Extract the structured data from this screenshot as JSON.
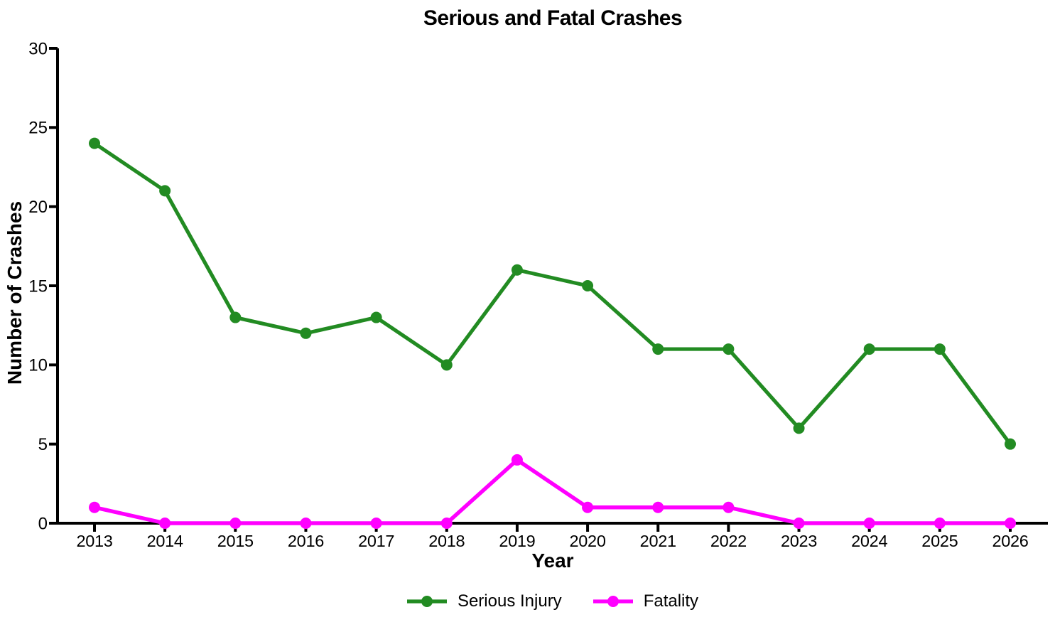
{
  "chart_data": {
    "type": "line",
    "title": "Serious and Fatal Crashes",
    "xlabel": "Year",
    "ylabel": "Number of Crashes",
    "categories": [
      "2013",
      "2014",
      "2015",
      "2016",
      "2017",
      "2018",
      "2019",
      "2020",
      "2021",
      "2022",
      "2023",
      "2024",
      "2025",
      "2026"
    ],
    "series": [
      {
        "name": "Serious Injury",
        "color": "#228B22",
        "values": [
          24,
          21,
          13,
          12,
          13,
          10,
          16,
          15,
          11,
          11,
          6,
          11,
          11,
          5
        ]
      },
      {
        "name": "Fatality",
        "color": "#FF00FF",
        "values": [
          1,
          0,
          0,
          0,
          0,
          0,
          4,
          1,
          1,
          1,
          0,
          0,
          0,
          0
        ]
      }
    ],
    "ylim": [
      0,
      30
    ],
    "yticks": [
      0,
      5,
      10,
      15,
      20,
      25,
      30
    ],
    "grid": false,
    "legend_position": "bottom",
    "axis_color": "#000000"
  }
}
